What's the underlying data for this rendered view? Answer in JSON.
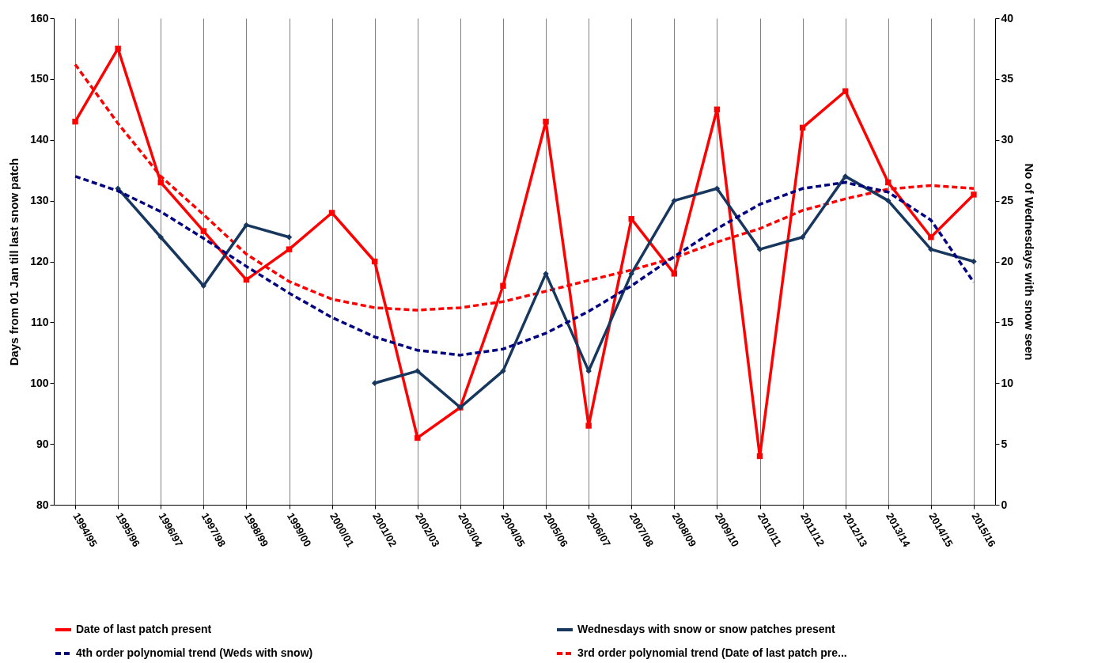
{
  "chart_data": {
    "type": "line",
    "ylabel": "Days from 01 Jan till last snow patch",
    "y2label": "No of Wednesdays with snow seen",
    "categories": [
      "1994/95",
      "1995/96",
      "1996/97",
      "1997/98",
      "1998/99",
      "1999/00",
      "2000/01",
      "2001/02",
      "2002/03",
      "2003/04",
      "2004/05",
      "2005/06",
      "2006/07",
      "2007/08",
      "2008/09",
      "2009/10",
      "2010/11",
      "2011/12",
      "2012/13",
      "2013/14",
      "2014/15",
      "2015/16"
    ],
    "series": [
      {
        "name": "Date of last patch present",
        "color": "#ff0000",
        "marker": "square",
        "line_style": "solid",
        "values": [
          143,
          155,
          133,
          125,
          117,
          122,
          128,
          120,
          91,
          96,
          116,
          143,
          93,
          127,
          118,
          145,
          88,
          142,
          148,
          133,
          124,
          131
        ]
      },
      {
        "name": "Wednesdays with snow or snow patches present",
        "color": "#17375e",
        "marker": "diamond",
        "line_style": "solid",
        "axis": "y2",
        "values": [
          null,
          26,
          22,
          18,
          23,
          22,
          null,
          10,
          11,
          8,
          11,
          19,
          11,
          19,
          25,
          26,
          21,
          22,
          27,
          25,
          21,
          20
        ]
      },
      {
        "name": "4th order polynomial trend (Weds with snow)",
        "color": "#000080",
        "marker": "none",
        "line_style": "dashed",
        "axis": "y2",
        "values": [
          27,
          25.8,
          24.1,
          21.9,
          19.6,
          17.4,
          15.4,
          13.8,
          12.7,
          12.3,
          12.8,
          14.1,
          15.9,
          18,
          20.4,
          22.7,
          24.7,
          26,
          26.5,
          25.7,
          23.4,
          18.3
        ]
      },
      {
        "name": "3rd order polynomial trend (Date of last patch pre...",
        "color": "#ff0000",
        "marker": "none",
        "line_style": "dashed",
        "values": [
          152.4,
          142.7,
          134,
          127.7,
          121.2,
          116.7,
          113.8,
          112.4,
          112,
          112.4,
          113.4,
          115.1,
          116.9,
          118.6,
          120.6,
          123.2,
          125.4,
          128.4,
          130.3,
          131.9,
          132.5,
          132
        ]
      }
    ],
    "ylim": [
      80,
      160
    ],
    "yticks": [
      80,
      90,
      100,
      110,
      120,
      130,
      140,
      150,
      160
    ],
    "y2lim": [
      0,
      40
    ],
    "y2ticks": [
      0,
      5,
      10,
      15,
      20,
      25,
      30,
      35,
      40
    ],
    "grid": "x",
    "legend": "bottom"
  }
}
